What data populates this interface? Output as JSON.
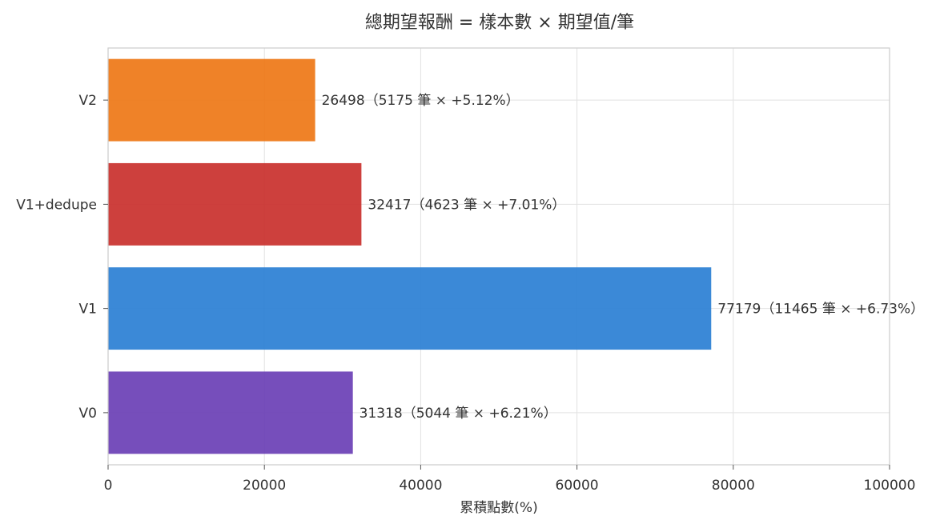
{
  "chart_data": {
    "type": "bar",
    "orientation": "horizontal",
    "title": "總期望報酬 = 樣本數 × 期望值/筆",
    "xlabel": "累積點數(%)",
    "ylabel": "",
    "xlim": [
      0,
      100000
    ],
    "xticks": [
      0,
      20000,
      40000,
      60000,
      80000,
      100000
    ],
    "xtick_labels": [
      "0",
      "20000",
      "40000",
      "60000",
      "80000",
      "100000"
    ],
    "grid": true,
    "categories": [
      "V0",
      "V1",
      "V1+dedupe",
      "V2"
    ],
    "values": [
      31318,
      77179,
      32417,
      26498
    ],
    "colors": [
      "#6a3fb5",
      "#2a7fd4",
      "#c9302c",
      "#ee7716"
    ],
    "data_labels": [
      "31318（5044 筆 × +6.21%）",
      "77179（11465 筆 × +6.73%）",
      "32417（4623 筆 × +7.01%）",
      "26498（5175 筆 × +5.12%）"
    ]
  }
}
